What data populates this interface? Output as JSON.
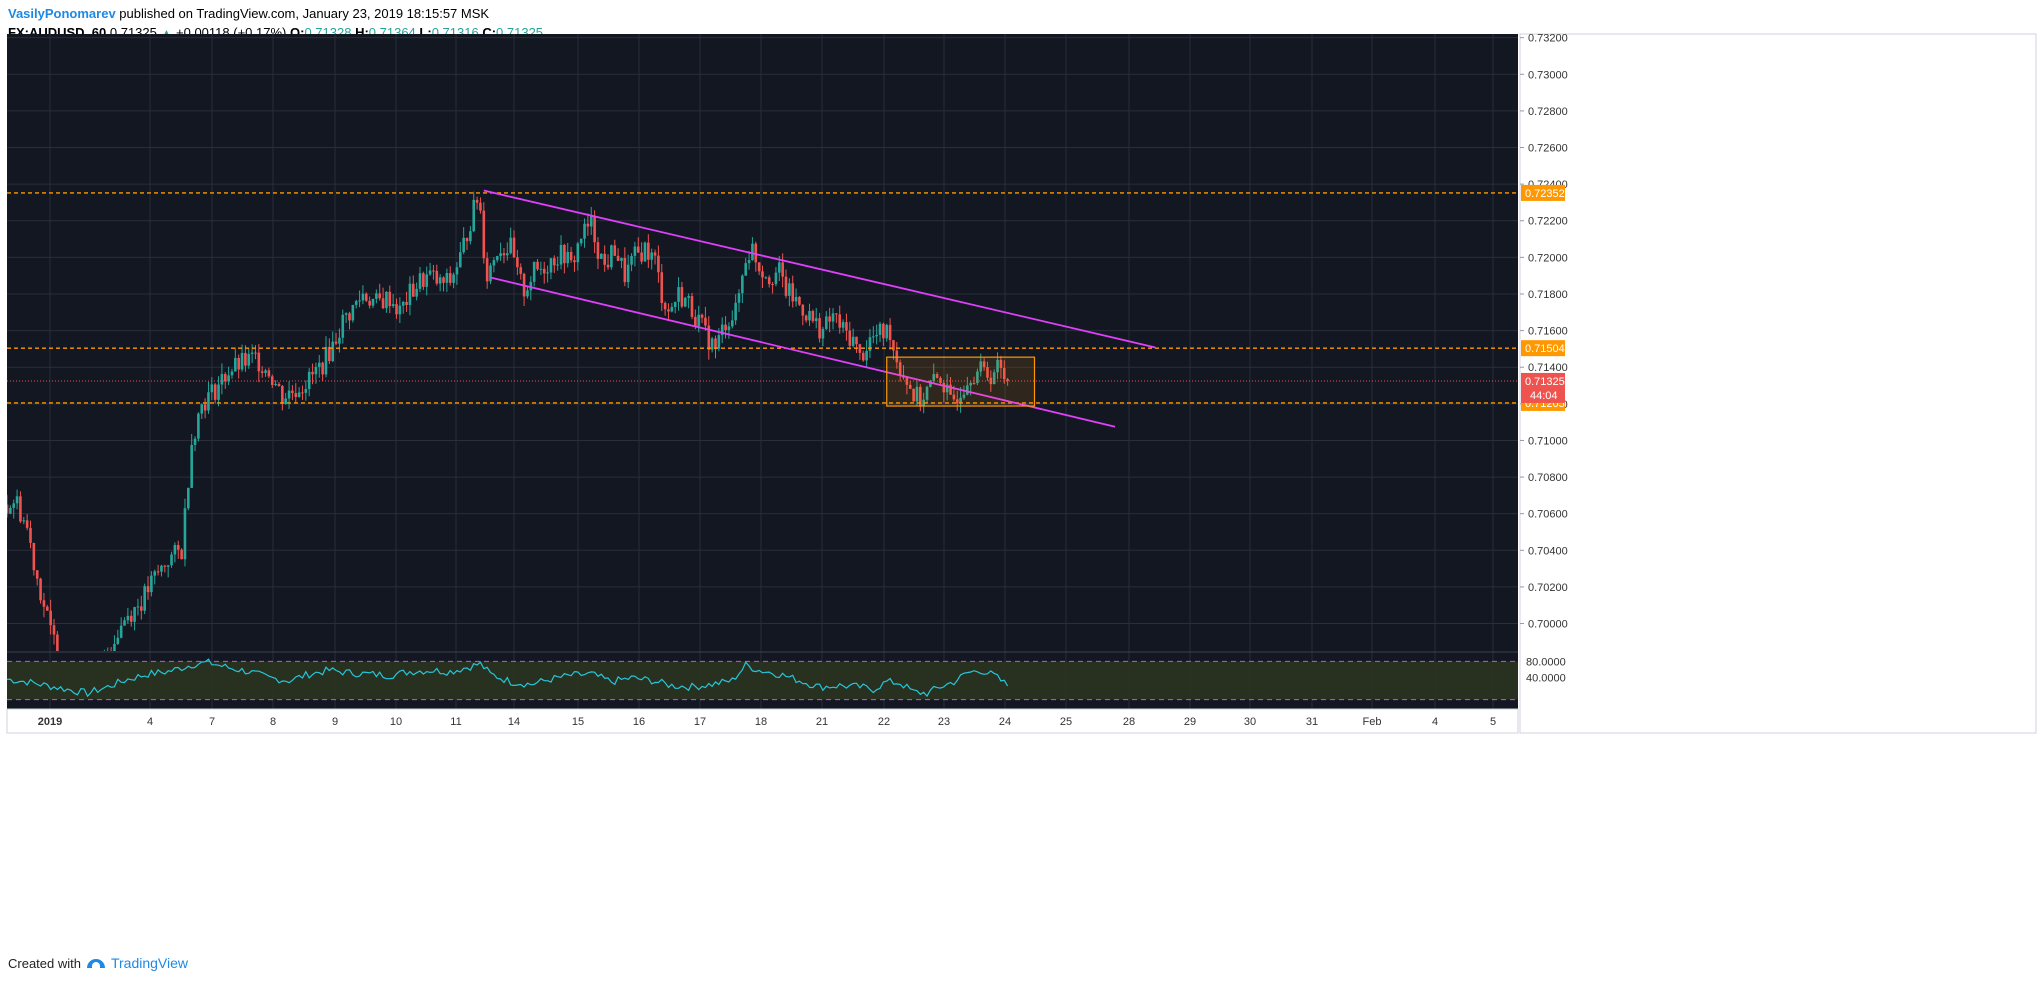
{
  "header": {
    "author": "VasilyPonomarev",
    "published_text": " published on TradingView.com, January 23, 2019 18:15:57 MSK",
    "symbol": "FX:AUDUSD, 60",
    "last": "0.71325",
    "change": "+0.00118 (+0.17%)",
    "open_label": "O:",
    "open": "0.71328",
    "high_label": "H:",
    "high": "0.71364",
    "low_label": "L:",
    "low": "0.71316",
    "close_label": "C:",
    "close": "0.71325"
  },
  "footer": {
    "created_text": "Created with",
    "brand": "TradingView",
    "logo_icon": "tradingview-logo-icon"
  },
  "colors": {
    "background": "#131722",
    "grid": "#2a2e39",
    "up": "#26a69a",
    "down": "#ef5350",
    "channel": "#e040fb",
    "levels": "#ff9800",
    "rsi": "#26c6da",
    "rsi_band": "#2b3320"
  },
  "chart_data": {
    "type": "candlestick",
    "symbol": "AUDUSD",
    "timeframe": "60",
    "x_ticks": [
      "2019",
      "4",
      "7",
      "8",
      "9",
      "10",
      "11",
      "14",
      "15",
      "16",
      "17",
      "18",
      "21",
      "22",
      "23",
      "24",
      "25",
      "28",
      "29",
      "30",
      "31",
      "Feb",
      "4",
      "5"
    ],
    "y_ticks": [
      "0.73200",
      "0.73000",
      "0.72800",
      "0.72600",
      "0.72400",
      "0.72200",
      "0.72000",
      "0.71800",
      "0.71600",
      "0.71400",
      "0.71200",
      "0.71000",
      "0.70800",
      "0.70600",
      "0.70400",
      "0.70200",
      "0.70000"
    ],
    "ylim": [
      0.6985,
      0.7322
    ],
    "price_path": [
      [
        0,
        0.7065
      ],
      [
        2.5,
        0.7068
      ],
      [
        6,
        0.7052
      ],
      [
        9,
        0.7025
      ],
      [
        13,
        0.6995
      ],
      [
        18,
        0.6975
      ],
      [
        22,
        0.6955
      ],
      [
        26,
        0.6968
      ],
      [
        30,
        0.6985
      ],
      [
        35,
        0.7003
      ],
      [
        40,
        0.7012
      ],
      [
        44,
        0.7025
      ],
      [
        48,
        0.7035
      ],
      [
        52,
        0.704
      ],
      [
        55,
        0.71
      ],
      [
        58,
        0.712
      ],
      [
        62,
        0.7128
      ],
      [
        66,
        0.7138
      ],
      [
        70,
        0.7142
      ],
      [
        74,
        0.7145
      ],
      [
        78,
        0.7138
      ],
      [
        82,
        0.7124
      ],
      [
        86,
        0.7128
      ],
      [
        90,
        0.7133
      ],
      [
        94,
        0.7142
      ],
      [
        97,
        0.7152
      ],
      [
        100,
        0.7165
      ],
      [
        103,
        0.7172
      ],
      [
        106,
        0.718
      ],
      [
        110,
        0.7175
      ],
      [
        114,
        0.7178
      ],
      [
        117,
        0.717
      ],
      [
        120,
        0.718
      ],
      [
        123,
        0.7187
      ],
      [
        126,
        0.719
      ],
      [
        129,
        0.7185
      ],
      [
        132,
        0.7187
      ],
      [
        135,
        0.72
      ],
      [
        138,
        0.722
      ],
      [
        140,
        0.7232
      ],
      [
        141,
        0.7225
      ],
      [
        142,
        0.7205
      ],
      [
        143,
        0.719
      ],
      [
        146,
        0.7205
      ],
      [
        150,
        0.7205
      ],
      [
        152,
        0.719
      ],
      [
        154,
        0.7182
      ],
      [
        157,
        0.7192
      ],
      [
        160,
        0.7195
      ],
      [
        163,
        0.72
      ],
      [
        166,
        0.7202
      ],
      [
        168,
        0.7195
      ],
      [
        171,
        0.7212
      ],
      [
        174,
        0.7218
      ],
      [
        176,
        0.7205
      ],
      [
        178,
        0.7195
      ],
      [
        181,
        0.7205
      ],
      [
        184,
        0.719
      ],
      [
        187,
        0.72
      ],
      [
        190,
        0.7205
      ],
      [
        193,
        0.7198
      ],
      [
        195,
        0.718
      ],
      [
        197,
        0.717
      ],
      [
        200,
        0.718
      ],
      [
        203,
        0.7175
      ],
      [
        206,
        0.7165
      ],
      [
        208,
        0.7158
      ],
      [
        211,
        0.715
      ],
      [
        214,
        0.7165
      ],
      [
        217,
        0.717
      ],
      [
        220,
        0.72
      ],
      [
        222,
        0.7205
      ],
      [
        224,
        0.7195
      ],
      [
        227,
        0.719
      ],
      [
        230,
        0.7192
      ],
      [
        232,
        0.7182
      ],
      [
        235,
        0.7176
      ],
      [
        238,
        0.717
      ],
      [
        240,
        0.7165
      ],
      [
        243,
        0.716
      ],
      [
        246,
        0.7168
      ],
      [
        249,
        0.716
      ],
      [
        252,
        0.7155
      ],
      [
        254,
        0.7145
      ],
      [
        257,
        0.7155
      ],
      [
        260,
        0.7158
      ],
      [
        263,
        0.716
      ],
      [
        264,
        0.715
      ],
      [
        266,
        0.714
      ],
      [
        268,
        0.7133
      ],
      [
        270,
        0.7125
      ],
      [
        272,
        0.7122
      ],
      [
        275,
        0.713
      ],
      [
        278,
        0.7135
      ],
      [
        280,
        0.7125
      ],
      [
        281,
        0.712
      ],
      [
        284,
        0.7128
      ],
      [
        287,
        0.7137
      ],
      [
        290,
        0.7138
      ],
      [
        293,
        0.7136
      ],
      [
        295,
        0.714
      ],
      [
        297,
        0.7135
      ],
      [
        298,
        0.71325
      ]
    ],
    "x_domain": [
      0,
      450
    ],
    "level_lines": [
      {
        "price": 0.72352,
        "label": "0.72352"
      },
      {
        "price": 0.71504,
        "label": "0.71504"
      },
      {
        "price": 0.71205,
        "label": "0.71205"
      }
    ],
    "current_price": {
      "price": 0.71325,
      "label": "0.71325",
      "countdown": "44:04"
    },
    "channel_lines": [
      [
        [
          142,
          0.72365
        ],
        [
          342,
          0.71508
        ]
      ],
      [
        [
          144,
          0.7189
        ],
        [
          330,
          0.71075
        ]
      ]
    ],
    "range_box": {
      "x0": 262,
      "x1": 306,
      "y_top": 0.71455,
      "y_bottom": 0.71188
    },
    "rsi": {
      "labels": [
        "80.0000",
        "40.0000"
      ],
      "upper": 80,
      "lower": 20,
      "ylim": [
        10,
        90
      ],
      "path": [
        [
          0,
          52
        ],
        [
          6,
          48
        ],
        [
          12,
          42
        ],
        [
          18,
          36
        ],
        [
          24,
          30
        ],
        [
          30,
          40
        ],
        [
          36,
          52
        ],
        [
          42,
          60
        ],
        [
          48,
          64
        ],
        [
          52,
          70
        ],
        [
          56,
          76
        ],
        [
          60,
          78
        ],
        [
          66,
          70
        ],
        [
          72,
          64
        ],
        [
          78,
          54
        ],
        [
          84,
          50
        ],
        [
          90,
          60
        ],
        [
          96,
          66
        ],
        [
          102,
          62
        ],
        [
          108,
          60
        ],
        [
          114,
          58
        ],
        [
          120,
          64
        ],
        [
          126,
          66
        ],
        [
          132,
          64
        ],
        [
          138,
          72
        ],
        [
          141,
          76
        ],
        [
          144,
          60
        ],
        [
          150,
          48
        ],
        [
          156,
          44
        ],
        [
          162,
          52
        ],
        [
          168,
          58
        ],
        [
          174,
          60
        ],
        [
          180,
          48
        ],
        [
          186,
          54
        ],
        [
          192,
          50
        ],
        [
          198,
          42
        ],
        [
          204,
          40
        ],
        [
          210,
          44
        ],
        [
          216,
          50
        ],
        [
          220,
          74
        ],
        [
          224,
          66
        ],
        [
          230,
          60
        ],
        [
          236,
          50
        ],
        [
          242,
          40
        ],
        [
          248,
          42
        ],
        [
          254,
          40
        ],
        [
          258,
          36
        ],
        [
          262,
          48
        ],
        [
          266,
          46
        ],
        [
          270,
          32
        ],
        [
          274,
          30
        ],
        [
          278,
          40
        ],
        [
          282,
          48
        ],
        [
          286,
          62
        ],
        [
          290,
          66
        ],
        [
          294,
          58
        ],
        [
          298,
          42
        ]
      ]
    }
  }
}
